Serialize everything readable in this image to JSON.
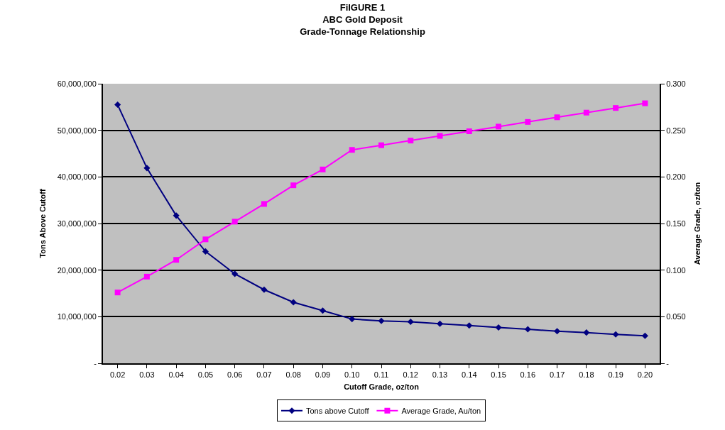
{
  "chart_data": {
    "type": "line",
    "title": "FiIGURE 1\nABC Gold Deposit\nGrade-Tonnage Relationship",
    "xlabel": "Cutoff Grade, oz/ton",
    "ylabel": "Tons Above Cutoff",
    "y2label": "Average Grade, oz/ton",
    "categories": [
      "0.02",
      "0.03",
      "0.04",
      "0.05",
      "0.06",
      "0.07",
      "0.08",
      "0.09",
      "0.10",
      "0.11",
      "0.12",
      "0.13",
      "0.14",
      "0.15",
      "0.16",
      "0.17",
      "0.18",
      "0.19",
      "0.20"
    ],
    "series": [
      {
        "name": "Tons above Cutoff",
        "color": "#000080",
        "marker": "diamond",
        "values": [
          55500000,
          41900000,
          31700000,
          24000000,
          19200000,
          15800000,
          13100000,
          11300000,
          9500000,
          9100000,
          8900000,
          8500000,
          8100000,
          7700000,
          7300000,
          6900000,
          6600000,
          6200000,
          5900000
        ]
      },
      {
        "name": "Average Grade, Au/ton",
        "color": "#ff00ff",
        "marker": "square",
        "axis": "y2",
        "values": [
          0.076,
          0.093,
          0.111,
          0.133,
          0.152,
          0.171,
          0.191,
          0.208,
          0.229,
          0.234,
          0.239,
          0.244,
          0.249,
          0.254,
          0.259,
          0.264,
          0.269,
          0.274,
          0.279
        ]
      }
    ],
    "ylim": [
      0,
      60000000
    ],
    "yticks": [
      {
        "value": 0,
        "label": "-"
      },
      {
        "value": 10000000,
        "label": "10,000,000"
      },
      {
        "value": 20000000,
        "label": "20,000,000"
      },
      {
        "value": 30000000,
        "label": "30,000,000"
      },
      {
        "value": 40000000,
        "label": "40,000,000"
      },
      {
        "value": 50000000,
        "label": "50,000,000"
      },
      {
        "value": 60000000,
        "label": "60,000,000"
      }
    ],
    "y2lim": [
      0,
      0.3
    ],
    "y2ticks": [
      {
        "value": 0,
        "label": "-"
      },
      {
        "value": 0.05,
        "label": "0.050"
      },
      {
        "value": 0.1,
        "label": "0.100"
      },
      {
        "value": 0.15,
        "label": "0.150"
      },
      {
        "value": 0.2,
        "label": "0.200"
      },
      {
        "value": 0.25,
        "label": "0.250"
      },
      {
        "value": 0.3,
        "label": "0.300"
      }
    ],
    "grid": "y",
    "legend": "bottom",
    "line_style": "solid"
  }
}
